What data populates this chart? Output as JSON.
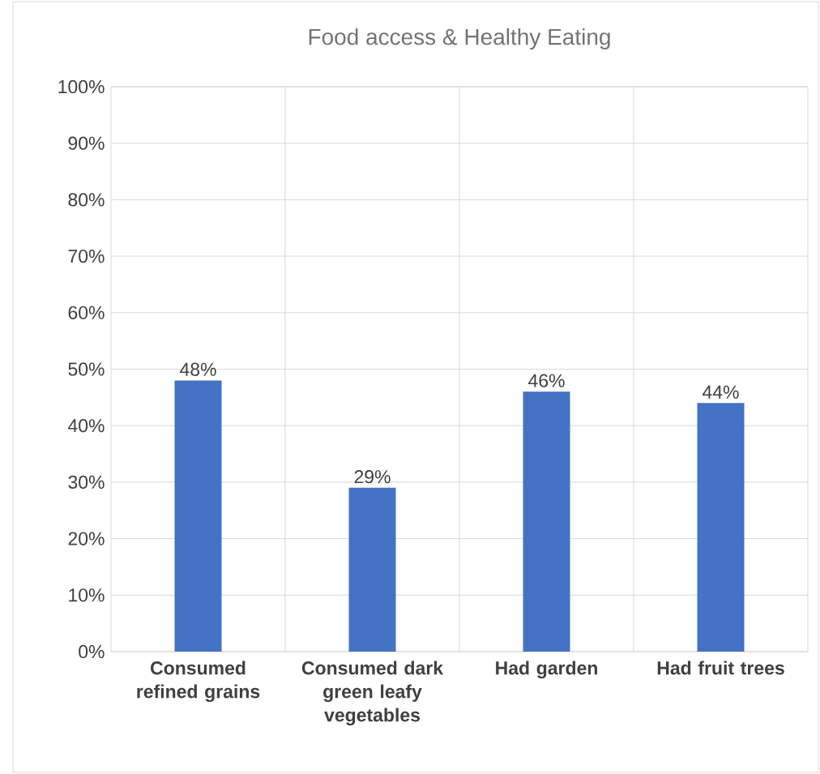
{
  "chart_data": {
    "type": "bar",
    "title": "Food access & Healthy Eating",
    "categories": [
      "Consumed refined grains",
      "Consumed dark green leafy vegetables",
      "Had garden",
      "Had fruit trees"
    ],
    "values": [
      48,
      29,
      46,
      44
    ],
    "value_labels": [
      "48%",
      "29%",
      "46%",
      "44%"
    ],
    "color": "#4472c4",
    "ylim": [
      0,
      100
    ],
    "yticks": [
      {
        "value": 0,
        "label": "0%"
      },
      {
        "value": 10,
        "label": "10%"
      },
      {
        "value": 20,
        "label": "20%"
      },
      {
        "value": 30,
        "label": "30%"
      },
      {
        "value": 40,
        "label": "40%"
      },
      {
        "value": 50,
        "label": "50%"
      },
      {
        "value": 60,
        "label": "60%"
      },
      {
        "value": 70,
        "label": "70%"
      },
      {
        "value": 80,
        "label": "80%"
      },
      {
        "value": 90,
        "label": "90%"
      },
      {
        "value": 100,
        "label": "100%"
      }
    ],
    "grid": true
  }
}
